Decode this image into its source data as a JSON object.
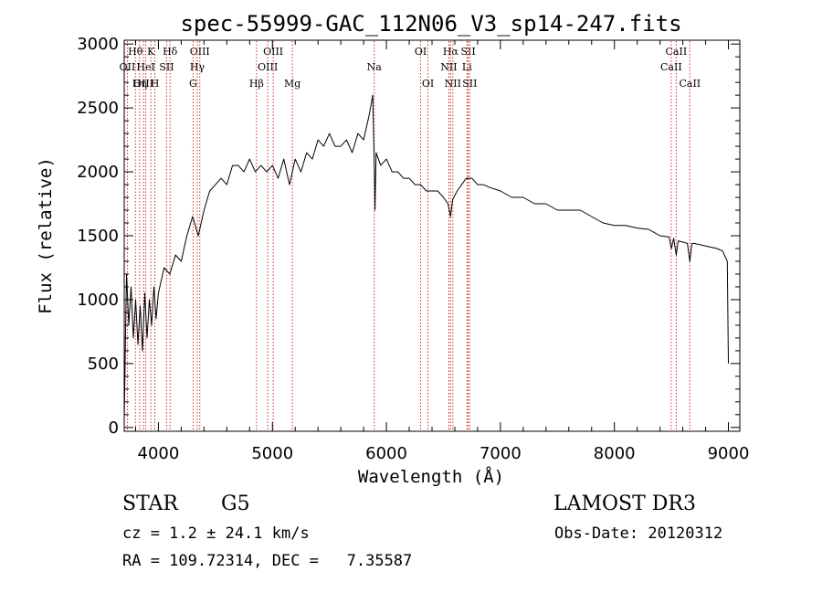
{
  "chart_data": {
    "type": "line",
    "title": "spec-55999-GAC_112N06_V3_sp14-247.fits",
    "xlabel": "Wavelength (Å)",
    "ylabel": "Flux (relative)",
    "xlim": [
      3700,
      9100
    ],
    "ylim": [
      -30,
      3030
    ],
    "xticks": [
      "4000",
      "5000",
      "6000",
      "7000",
      "8000",
      "9000"
    ],
    "yticks": [
      "0",
      "500",
      "1000",
      "1500",
      "2000",
      "2500",
      "3000"
    ],
    "grid": false,
    "line_color": "#000000",
    "line_marker_color": "#d32f2f",
    "spectrum": {
      "x": [
        3700,
        3720,
        3740,
        3760,
        3780,
        3800,
        3820,
        3840,
        3860,
        3880,
        3900,
        3920,
        3940,
        3960,
        3980,
        4000,
        4050,
        4100,
        4150,
        4200,
        4250,
        4300,
        4350,
        4400,
        4450,
        4500,
        4550,
        4600,
        4650,
        4700,
        4750,
        4800,
        4850,
        4900,
        4950,
        5000,
        5050,
        5100,
        5150,
        5200,
        5250,
        5300,
        5350,
        5400,
        5450,
        5500,
        5550,
        5600,
        5650,
        5700,
        5750,
        5800,
        5850,
        5880,
        5895,
        5900,
        5910,
        5950,
        6000,
        6050,
        6100,
        6150,
        6200,
        6250,
        6300,
        6350,
        6400,
        6450,
        6500,
        6540,
        6563,
        6580,
        6620,
        6660,
        6700,
        6750,
        6800,
        6850,
        6900,
        7000,
        7100,
        7200,
        7300,
        7400,
        7500,
        7600,
        7700,
        7800,
        7900,
        8000,
        8100,
        8200,
        8300,
        8400,
        8480,
        8500,
        8520,
        8542,
        8560,
        8600,
        8640,
        8662,
        8680,
        8700,
        8750,
        8800,
        8850,
        8900,
        8950,
        8990,
        9000
      ],
      "y": [
        50,
        1200,
        800,
        1100,
        700,
        1000,
        650,
        950,
        600,
        1050,
        700,
        1000,
        800,
        1100,
        850,
        1050,
        1250,
        1200,
        1350,
        1300,
        1500,
        1650,
        1500,
        1700,
        1850,
        1900,
        1950,
        1900,
        2050,
        2050,
        2000,
        2100,
        2000,
        2050,
        2000,
        2050,
        1950,
        2100,
        1900,
        2100,
        2000,
        2150,
        2100,
        2250,
        2200,
        2300,
        2200,
        2200,
        2250,
        2150,
        2300,
        2250,
        2450,
        2600,
        2000,
        1700,
        2150,
        2050,
        2100,
        2000,
        2000,
        1950,
        1950,
        1900,
        1900,
        1850,
        1850,
        1850,
        1800,
        1750,
        1650,
        1780,
        1850,
        1900,
        1950,
        1950,
        1900,
        1900,
        1880,
        1850,
        1800,
        1800,
        1750,
        1750,
        1700,
        1700,
        1700,
        1650,
        1600,
        1580,
        1580,
        1560,
        1550,
        1500,
        1490,
        1400,
        1480,
        1350,
        1460,
        1450,
        1440,
        1300,
        1440,
        1440,
        1430,
        1420,
        1410,
        1400,
        1380,
        1300,
        500
      ]
    },
    "line_markers": [
      {
        "label": "Hθ",
        "x": 3798,
        "row": 0
      },
      {
        "label": "OII",
        "x": 3727,
        "row": 1
      },
      {
        "label": "OIII",
        "x": 3869,
        "row": 2
      },
      {
        "label": "K",
        "x": 3934,
        "row": 0
      },
      {
        "label": "HeI",
        "x": 3889,
        "row": 1
      },
      {
        "label": "Hη",
        "x": 3835,
        "row": 2
      },
      {
        "label": "SII",
        "x": 4072,
        "row": 1
      },
      {
        "label": "H",
        "x": 3969,
        "row": 2
      },
      {
        "label": "Hδ",
        "x": 4102,
        "row": 0
      },
      {
        "label": "OIII",
        "x": 4363,
        "row": 0
      },
      {
        "label": "Hγ",
        "x": 4341,
        "row": 1
      },
      {
        "label": "G",
        "x": 4304,
        "row": 2
      },
      {
        "label": "Hβ",
        "x": 4861,
        "row": 2
      },
      {
        "label": "OIII",
        "x": 5007,
        "row": 0
      },
      {
        "label": "OIII",
        "x": 4959,
        "row": 1
      },
      {
        "label": "Mg",
        "x": 5175,
        "row": 2
      },
      {
        "label": "Na",
        "x": 5893,
        "row": 1
      },
      {
        "label": "OI",
        "x": 6300,
        "row": 0
      },
      {
        "label": "OI",
        "x": 6364,
        "row": 2
      },
      {
        "label": "Hα",
        "x": 6563,
        "row": 0
      },
      {
        "label": "NII",
        "x": 6548,
        "row": 1
      },
      {
        "label": "NII",
        "x": 6583,
        "row": 2
      },
      {
        "label": "SII",
        "x": 6717,
        "row": 0
      },
      {
        "label": "Li",
        "x": 6707,
        "row": 1
      },
      {
        "label": "SII",
        "x": 6731,
        "row": 2
      },
      {
        "label": "CaII",
        "x": 8542,
        "row": 0
      },
      {
        "label": "CaII",
        "x": 8498,
        "row": 1
      },
      {
        "label": "CaII",
        "x": 8662,
        "row": 2
      }
    ]
  },
  "footer": {
    "object_type": "STAR",
    "subclass": "G5",
    "cz": "cz = 1.2 ± 24.1 km/s",
    "coords": "RA = 109.72314, DEC =   7.35587",
    "survey": "LAMOST DR3",
    "obs_date": "Obs-Date: 20120312"
  }
}
